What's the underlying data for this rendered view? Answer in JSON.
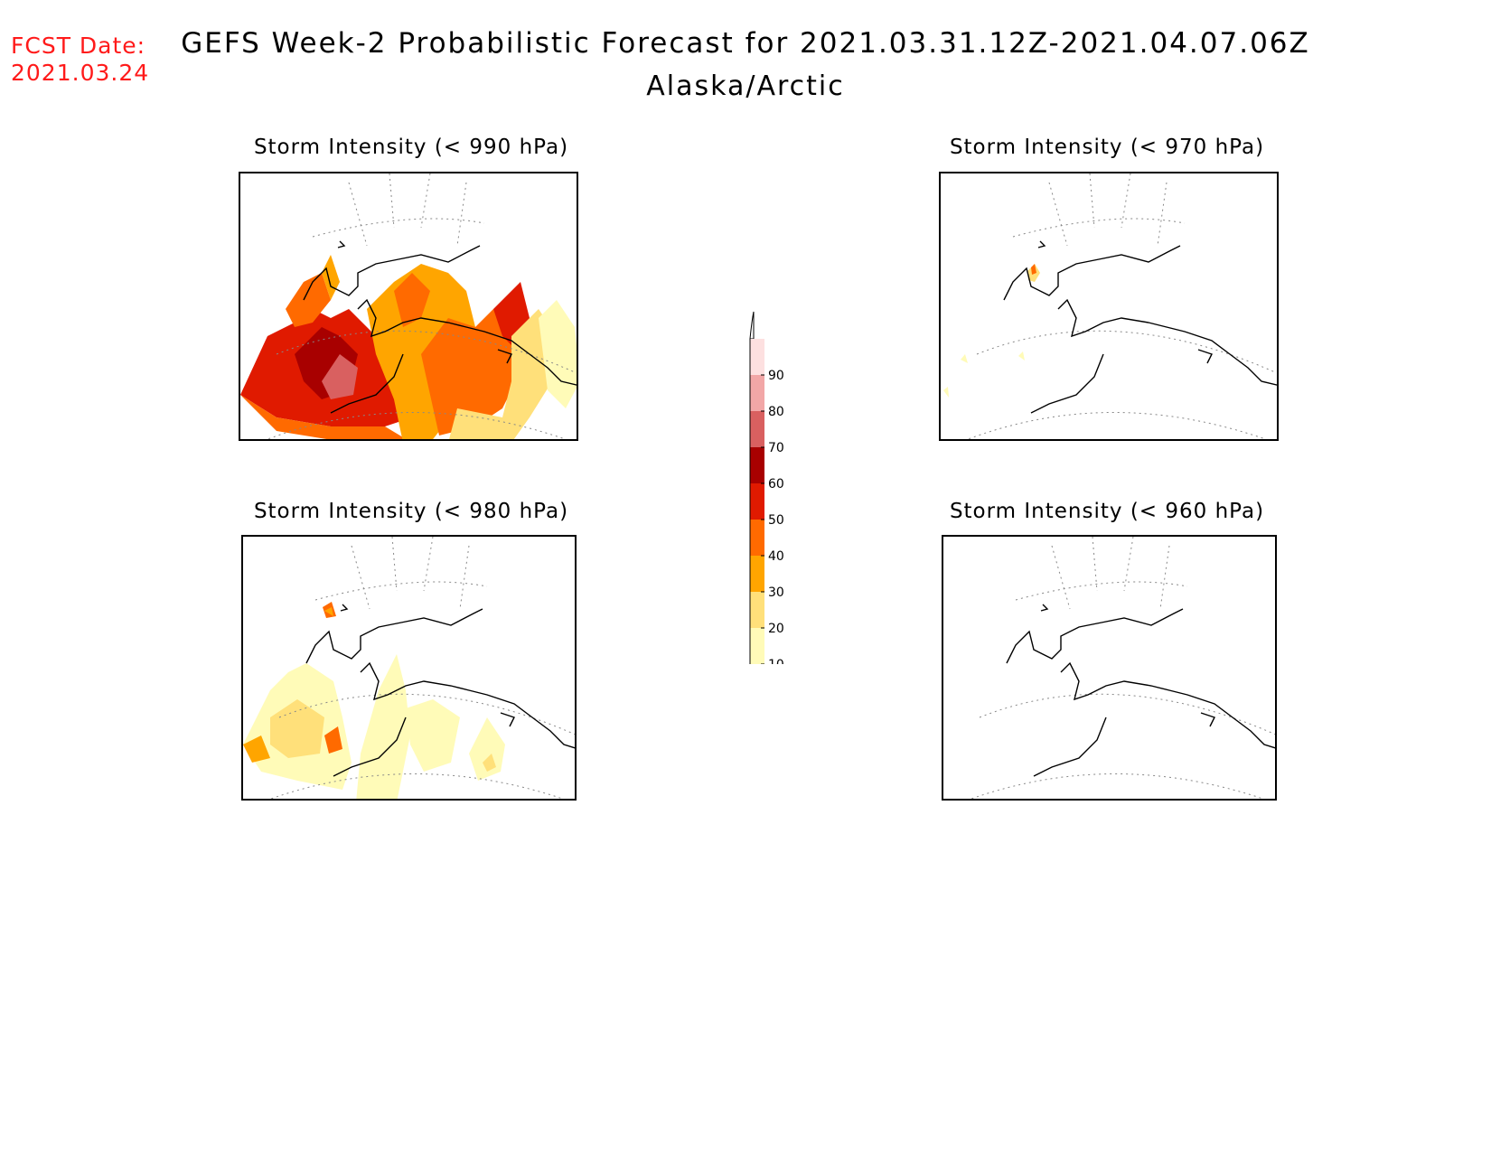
{
  "fcst_date": {
    "label": "FCST Date:",
    "value": "2021.03.24"
  },
  "title": "GEFS Week-2 Probabilistic Forecast for 2021.03.31.12Z-2021.04.07.06Z",
  "subtitle": "Alaska/Arctic",
  "panels": [
    {
      "title": "Storm Intensity (< 990 hPa)",
      "intensity": "high"
    },
    {
      "title": "Storm Intensity (< 970 hPa)",
      "intensity": "trace"
    },
    {
      "title": "Storm Intensity (< 980 hPa)",
      "intensity": "low"
    },
    {
      "title": "Storm Intensity (< 960 hPa)",
      "intensity": "none"
    }
  ],
  "colorbar": {
    "levels": [
      "10",
      "20",
      "30",
      "40",
      "50",
      "60",
      "70",
      "80",
      "90"
    ],
    "colors": [
      "#fffbb8",
      "#ffe07a",
      "#ffa500",
      "#ff6a00",
      "#e01a00",
      "#a80000",
      "#d96060",
      "#f2a7a7",
      "#fde0e0"
    ]
  }
}
